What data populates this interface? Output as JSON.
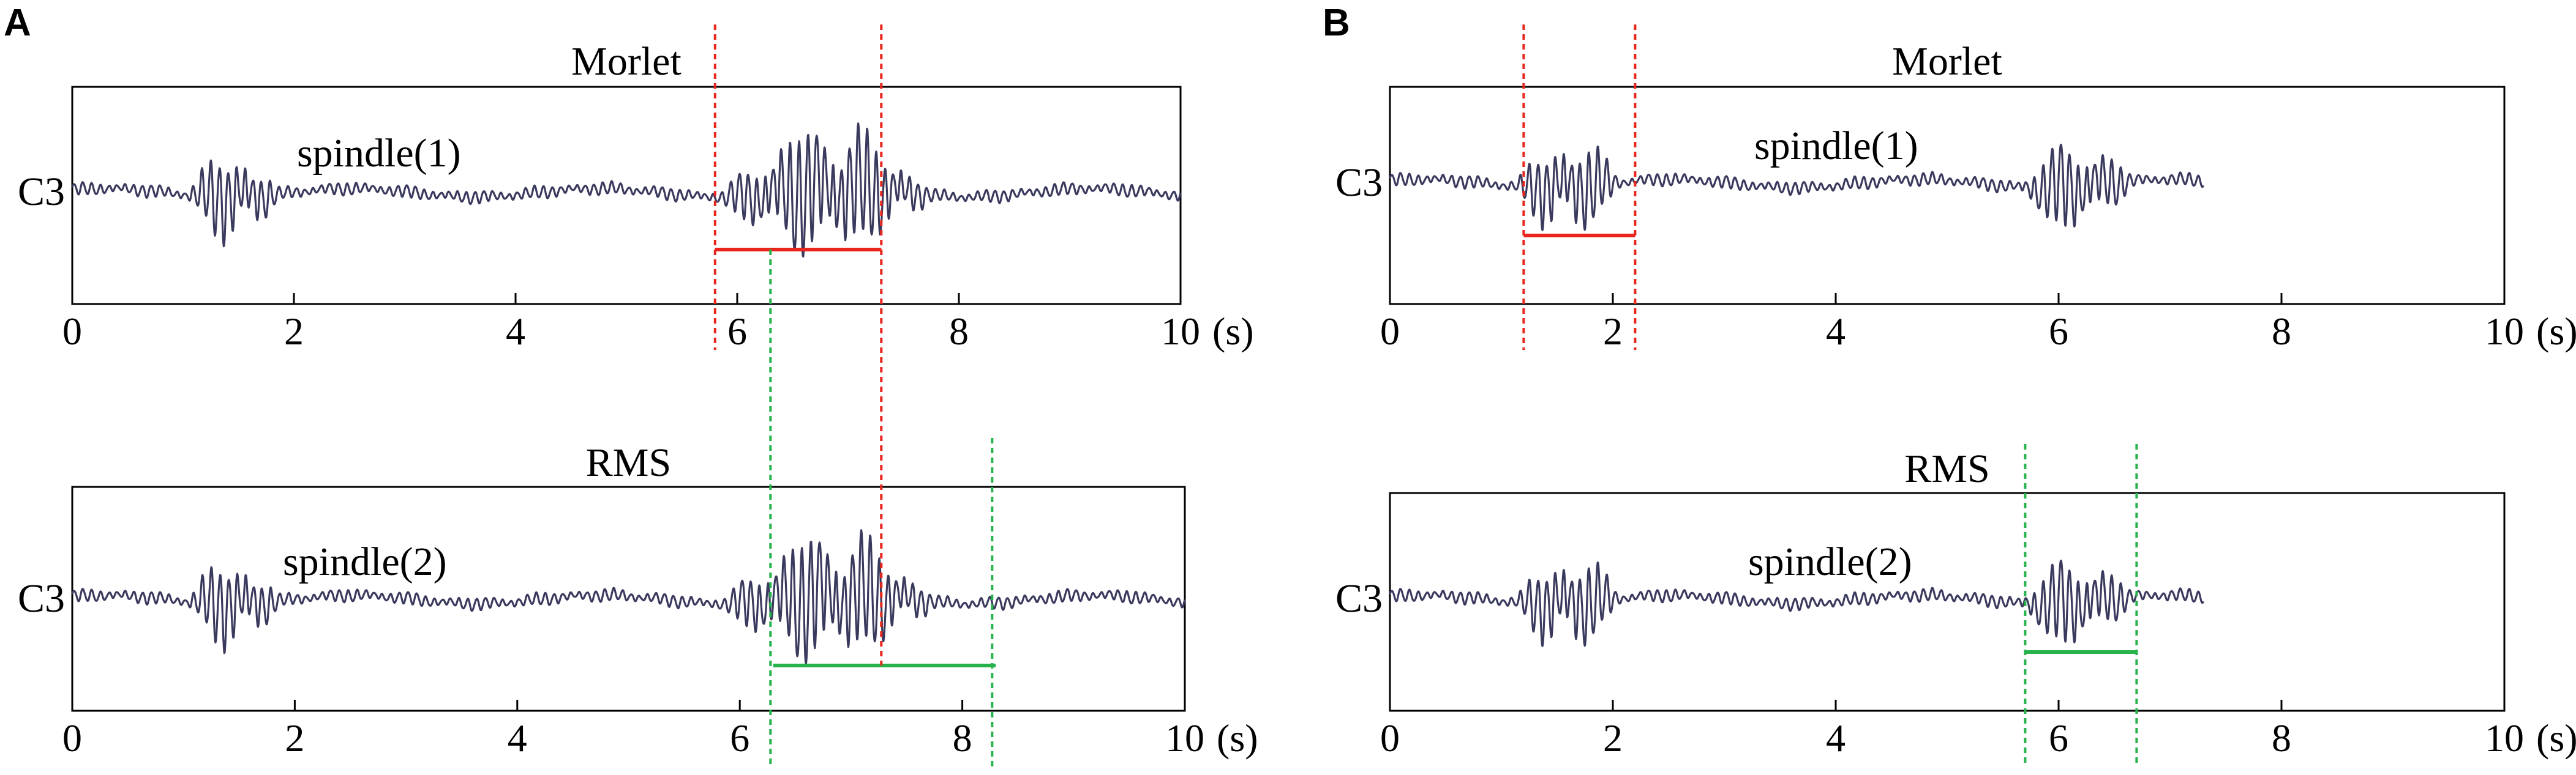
{
  "panels": [
    {
      "letter": "A",
      "charts": [
        {
          "type": "line",
          "title": "Morlet",
          "channel": "C3",
          "annotation": "spindle(1)",
          "xunit": "(s)",
          "xlim": [
            0,
            10
          ],
          "xticks": [
            "0",
            "2",
            "4",
            "6",
            "8",
            "10"
          ],
          "signal_length_s": 10,
          "bursts": [
            {
              "start": 1.0,
              "end": 1.9,
              "amplitude": 1.0
            },
            {
              "start": 5.8,
              "end": 7.8,
              "amplitude": 1.45
            }
          ],
          "spindle": {
            "start": 5.8,
            "end": 7.3,
            "color": "#e8251c"
          }
        },
        {
          "type": "line",
          "title": "RMS",
          "channel": "C3",
          "annotation": "spindle(2)",
          "xunit": "(s)",
          "xlim": [
            0,
            10
          ],
          "xticks": [
            "0",
            "2",
            "4",
            "6",
            "8",
            "10"
          ],
          "signal_length_s": 10,
          "bursts": [
            {
              "start": 1.0,
              "end": 1.9,
              "amplitude": 1.0
            },
            {
              "start": 5.8,
              "end": 7.8,
              "amplitude": 1.45
            }
          ],
          "spindle": {
            "start": 6.3,
            "end": 8.3,
            "color": "#26b34b"
          }
        }
      ]
    },
    {
      "letter": "B",
      "charts": [
        {
          "type": "line",
          "title": "Morlet",
          "channel": "C3",
          "annotation": "spindle(1)",
          "xunit": "(s)",
          "xlim": [
            0,
            10
          ],
          "xticks": [
            "0",
            "2",
            "4",
            "6",
            "8",
            "10"
          ],
          "signal_length_s": 7.3,
          "bursts": [
            {
              "start": 1.1,
              "end": 2.1,
              "amplitude": 1.1
            },
            {
              "start": 5.6,
              "end": 6.7,
              "amplitude": 1.0
            }
          ],
          "spindle": {
            "start": 1.2,
            "end": 2.2,
            "color": "#e8251c"
          }
        },
        {
          "type": "line",
          "title": "RMS",
          "channel": "C3",
          "annotation": "spindle(2)",
          "xunit": "(s)",
          "xlim": [
            0,
            10
          ],
          "xticks": [
            "0",
            "2",
            "4",
            "6",
            "8",
            "10"
          ],
          "signal_length_s": 7.3,
          "bursts": [
            {
              "start": 1.1,
              "end": 2.1,
              "amplitude": 1.1
            },
            {
              "start": 5.6,
              "end": 6.7,
              "amplitude": 1.0
            }
          ],
          "spindle": {
            "start": 5.7,
            "end": 6.7,
            "color": "#26b34b"
          }
        }
      ]
    }
  ]
}
